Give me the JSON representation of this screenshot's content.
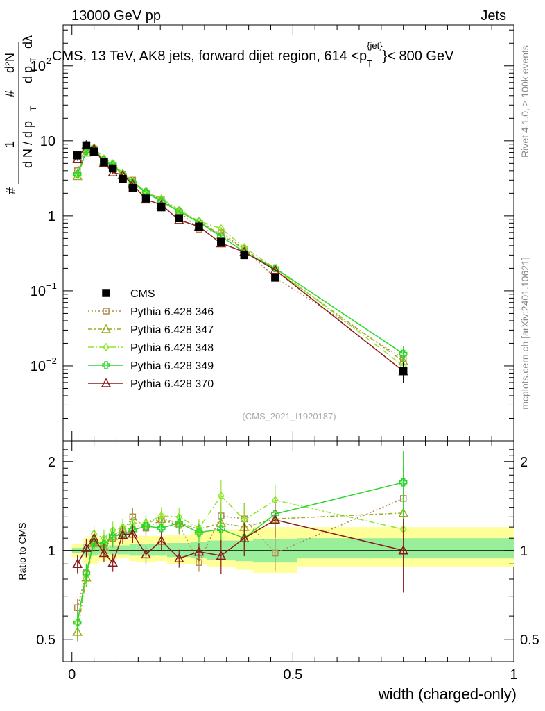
{
  "header": {
    "left": "13000 GeV pp",
    "right": "Jets"
  },
  "side_labels": {
    "rivet": "Rivet 4.1.0, ≥ 100k events",
    "mcplots": "mcplots.cern.ch [arXiv:2401.10621]"
  },
  "watermark": "(CMS_2021_I1920187)",
  "ratio_ylabel": "Ratio to CMS",
  "colors": {
    "cms": "#000000",
    "p346": "#b08850",
    "p347": "#9aad1e",
    "p348": "#8fe62a",
    "p349": "#2ad62a",
    "p370": "#8b1a1a",
    "band_yellow": "#ffff99",
    "band_green": "#99ee99"
  },
  "chart_data": [
    {
      "type": "scatter",
      "title": "CMS, 13 TeV, AK8 jets, forward dijet region, 614 <p",
      "title_sup": "{jet}",
      "title_sub": "T",
      "title_tail": "}< 800 GeV",
      "ylabel": "1/N dN/dp_T dλ",
      "yscale": "log",
      "ylim": [
        0.001,
        350
      ],
      "xlim": [
        -0.02,
        1.0
      ],
      "yticks": [
        {
          "v": 0.01,
          "base": "10",
          "exp": "−2"
        },
        {
          "v": 0.1,
          "base": "10",
          "exp": "−1"
        },
        {
          "v": 1,
          "base": "1",
          "exp": ""
        },
        {
          "v": 10,
          "base": "10",
          "exp": ""
        },
        {
          "v": 100,
          "base": "10",
          "exp": "2"
        }
      ],
      "x": [
        0.0125,
        0.0325,
        0.05,
        0.0725,
        0.0925,
        0.115,
        0.1375,
        0.1675,
        0.2025,
        0.2425,
        0.2875,
        0.3375,
        0.39,
        0.46,
        0.75
      ],
      "series": [
        {
          "name": "CMS",
          "key": "cms",
          "marker": "square",
          "dash": "",
          "values": [
            6.4,
            8.7,
            7.2,
            5.2,
            4.3,
            3.1,
            2.35,
            1.7,
            1.3,
            0.93,
            0.72,
            0.45,
            0.3,
            0.15,
            0.0085
          ]
        },
        {
          "name": "Pythia 6.428 346",
          "key": "p346",
          "marker": "square-open",
          "dash": "2,3",
          "values": [
            4.0,
            7.9,
            7.8,
            5.4,
            4.7,
            3.6,
            3.0,
            2.0,
            1.65,
            1.15,
            0.66,
            0.6,
            0.36,
            0.15,
            0.0125
          ]
        },
        {
          "name": "Pythia 6.428 347",
          "key": "p347",
          "marker": "triangle-open",
          "dash": "6,3,2,3",
          "values": [
            3.4,
            7.0,
            7.6,
            5.4,
            4.8,
            3.6,
            2.8,
            2.1,
            1.65,
            1.15,
            0.84,
            0.56,
            0.36,
            0.19,
            0.0115
          ]
        },
        {
          "name": "Pythia 6.428 348",
          "key": "p348",
          "marker": "diamond-open",
          "dash": "8,3,2,3",
          "values": [
            3.6,
            7.1,
            8.2,
            5.8,
            5.0,
            3.7,
            2.9,
            2.1,
            1.7,
            1.2,
            0.85,
            0.68,
            0.38,
            0.2,
            0.01
          ]
        },
        {
          "name": "Pythia 6.428 349",
          "key": "p349",
          "marker": "cross-open",
          "dash": "",
          "values": [
            3.6,
            7.3,
            7.7,
            5.5,
            4.8,
            3.5,
            2.75,
            2.05,
            1.55,
            1.15,
            0.82,
            0.53,
            0.33,
            0.2,
            0.0145
          ]
        },
        {
          "name": "Pythia 6.428 370",
          "key": "p370",
          "marker": "triangle-open",
          "dash": "",
          "values": [
            5.7,
            8.8,
            7.8,
            5.1,
            3.8,
            3.5,
            2.65,
            1.65,
            1.4,
            0.88,
            0.72,
            0.43,
            0.33,
            0.19,
            0.0085
          ]
        }
      ]
    },
    {
      "type": "scatter",
      "title": "",
      "ylabel": "Ratio to CMS",
      "xlabel": "width (charged-only)",
      "yscale": "log",
      "ylim": [
        0.42,
        2.35
      ],
      "xlim": [
        -0.02,
        1.0
      ],
      "yticks": [
        {
          "v": 0.5,
          "label": "0.5"
        },
        {
          "v": 1,
          "label": "1"
        },
        {
          "v": 2,
          "label": "2"
        }
      ],
      "xticks": [
        {
          "v": 0,
          "label": "0"
        },
        {
          "v": 0.5,
          "label": "0.5"
        },
        {
          "v": 1,
          "label": "1"
        }
      ],
      "reference_line": 1,
      "band_edges": [
        0.0,
        0.025,
        0.04,
        0.06,
        0.085,
        0.1,
        0.13,
        0.145,
        0.19,
        0.215,
        0.27,
        0.305,
        0.37,
        0.41,
        0.51,
        1.0
      ],
      "band_yellow": [
        [
          0.95,
          1.05
        ],
        [
          0.9,
          1.1
        ],
        [
          0.9,
          1.12
        ],
        [
          0.92,
          1.1
        ],
        [
          0.93,
          1.1
        ],
        [
          0.94,
          1.1
        ],
        [
          0.92,
          1.12
        ],
        [
          0.91,
          1.12
        ],
        [
          0.92,
          1.12
        ],
        [
          0.9,
          1.13
        ],
        [
          0.9,
          1.15
        ],
        [
          0.88,
          1.17
        ],
        [
          0.86,
          1.18
        ],
        [
          0.84,
          1.2
        ],
        [
          0.88,
          1.2
        ]
      ],
      "band_green": [
        [
          0.98,
          1.02
        ],
        [
          0.96,
          1.05
        ],
        [
          0.96,
          1.06
        ],
        [
          0.97,
          1.04
        ],
        [
          0.97,
          1.04
        ],
        [
          0.97,
          1.04
        ],
        [
          0.96,
          1.05
        ],
        [
          0.96,
          1.05
        ],
        [
          0.96,
          1.05
        ],
        [
          0.95,
          1.06
        ],
        [
          0.94,
          1.07
        ],
        [
          0.93,
          1.08
        ],
        [
          0.92,
          1.08
        ],
        [
          0.91,
          1.09
        ],
        [
          0.94,
          1.1
        ]
      ],
      "series": [
        {
          "name": "Pythia 6.428 346",
          "key": "p346",
          "marker": "square-open",
          "dash": "2,3",
          "values": [
            0.64,
            0.84,
            1.06,
            1.02,
            1.1,
            1.16,
            1.3,
            1.19,
            1.27,
            1.22,
            0.91,
            1.31,
            1.28,
            0.98,
            1.5
          ]
        },
        {
          "name": "Pythia 6.428 347",
          "key": "p347",
          "marker": "triangle-open",
          "dash": "6,3,2,3",
          "values": [
            0.53,
            0.81,
            1.06,
            1.03,
            1.12,
            1.18,
            1.19,
            1.24,
            1.28,
            1.24,
            1.18,
            1.24,
            1.2,
            1.28,
            1.34
          ]
        },
        {
          "name": "Pythia 6.428 348",
          "key": "p348",
          "marker": "diamond-open",
          "dash": "8,3,2,3",
          "values": [
            0.57,
            0.82,
            1.14,
            1.1,
            1.17,
            1.2,
            1.24,
            1.24,
            1.31,
            1.3,
            1.19,
            1.53,
            1.27,
            1.48,
            1.18
          ]
        },
        {
          "name": "Pythia 6.428 349",
          "key": "p349",
          "marker": "cross-open",
          "dash": "",
          "values": [
            0.57,
            0.84,
            1.07,
            1.05,
            1.12,
            1.13,
            1.17,
            1.21,
            1.19,
            1.24,
            1.15,
            1.18,
            1.1,
            1.33,
            1.7
          ]
        },
        {
          "name": "Pythia 6.428 370",
          "key": "p370",
          "marker": "triangle-open",
          "dash": "",
          "values": [
            0.9,
            1.02,
            1.1,
            0.98,
            0.91,
            1.13,
            1.14,
            0.97,
            1.08,
            0.94,
            0.99,
            0.96,
            1.1,
            1.27,
            1.0
          ]
        }
      ]
    }
  ]
}
